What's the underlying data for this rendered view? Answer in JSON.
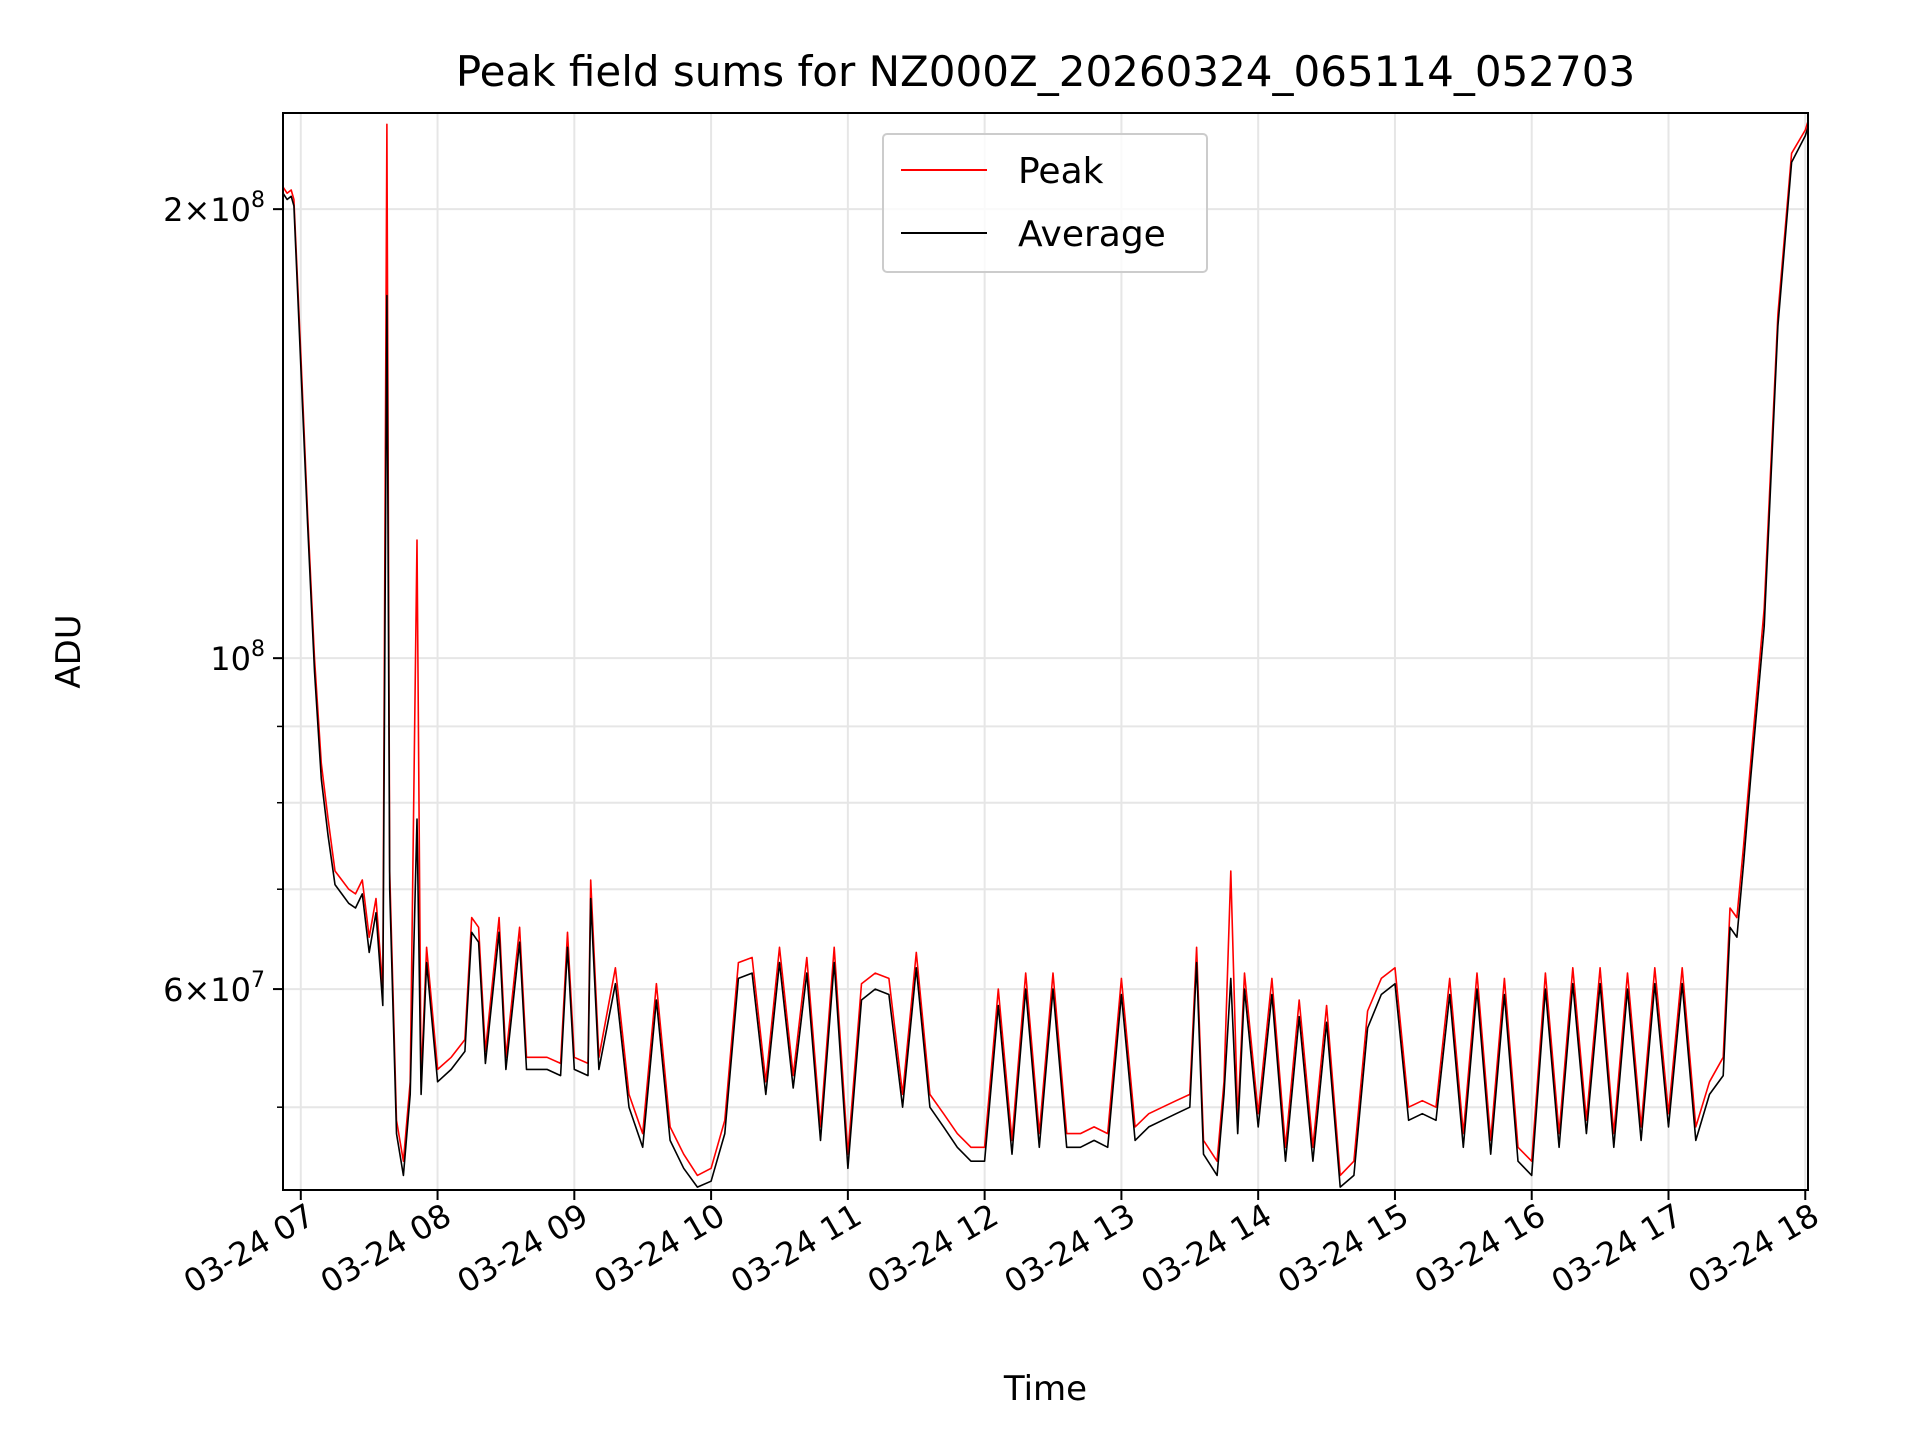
{
  "chart_data": {
    "type": "line",
    "title": "Peak field sums for NZ000Z_20260324_065114_052703",
    "xlabel": "Time",
    "ylabel": "ADU",
    "yscale": "log",
    "ylim": [
      44000000,
      232000000
    ],
    "xlim_hours": [
      6.87,
      18.02
    ],
    "grid": true,
    "legend_position": "top-center",
    "x_ticks": [
      {
        "hour": 7,
        "label": "03-24 07"
      },
      {
        "hour": 8,
        "label": "03-24 08"
      },
      {
        "hour": 9,
        "label": "03-24 09"
      },
      {
        "hour": 10,
        "label": "03-24 10"
      },
      {
        "hour": 11,
        "label": "03-24 11"
      },
      {
        "hour": 12,
        "label": "03-24 12"
      },
      {
        "hour": 13,
        "label": "03-24 13"
      },
      {
        "hour": 14,
        "label": "03-24 14"
      },
      {
        "hour": 15,
        "label": "03-24 15"
      },
      {
        "hour": 16,
        "label": "03-24 16"
      },
      {
        "hour": 17,
        "label": "03-24 17"
      },
      {
        "hour": 18,
        "label": "03-24 18"
      }
    ],
    "y_major_ticks": [
      {
        "value": 200000000,
        "mantissa": "2",
        "exp": "8"
      },
      {
        "value": 100000000,
        "mantissa": "",
        "exp": "8"
      },
      {
        "value": 60000000,
        "mantissa": "6",
        "exp": "7"
      }
    ],
    "y_minor_ticks": [
      50000000,
      70000000,
      80000000,
      90000000
    ],
    "series": [
      {
        "name": "Peak",
        "color": "#ff0000",
        "points": [
          [
            6.87,
            207000000
          ],
          [
            6.9,
            205000000
          ],
          [
            6.93,
            206000000
          ],
          [
            6.95,
            203000000
          ],
          [
            7.0,
            160000000
          ],
          [
            7.05,
            125000000
          ],
          [
            7.1,
            100000000
          ],
          [
            7.15,
            85000000
          ],
          [
            7.2,
            78000000
          ],
          [
            7.25,
            72000000
          ],
          [
            7.3,
            71000000
          ],
          [
            7.35,
            70000000
          ],
          [
            7.4,
            69500000
          ],
          [
            7.45,
            71000000
          ],
          [
            7.5,
            65000000
          ],
          [
            7.55,
            69000000
          ],
          [
            7.6,
            60000000
          ],
          [
            7.63,
            228000000
          ],
          [
            7.65,
            72000000
          ],
          [
            7.7,
            49000000
          ],
          [
            7.75,
            46000000
          ],
          [
            7.8,
            52000000
          ],
          [
            7.85,
            120000000
          ],
          [
            7.88,
            52000000
          ],
          [
            7.92,
            64000000
          ],
          [
            8.0,
            53000000
          ],
          [
            8.1,
            54000000
          ],
          [
            8.2,
            55500000
          ],
          [
            8.25,
            67000000
          ],
          [
            8.3,
            66000000
          ],
          [
            8.35,
            54500000
          ],
          [
            8.45,
            67000000
          ],
          [
            8.5,
            54000000
          ],
          [
            8.6,
            66000000
          ],
          [
            8.65,
            54000000
          ],
          [
            8.8,
            54000000
          ],
          [
            8.9,
            53500000
          ],
          [
            8.95,
            65500000
          ],
          [
            9.0,
            54000000
          ],
          [
            9.1,
            53500000
          ],
          [
            9.12,
            71000000
          ],
          [
            9.18,
            54000000
          ],
          [
            9.3,
            62000000
          ],
          [
            9.4,
            51000000
          ],
          [
            9.5,
            48000000
          ],
          [
            9.6,
            60500000
          ],
          [
            9.7,
            48500000
          ],
          [
            9.8,
            46500000
          ],
          [
            9.9,
            45000000
          ],
          [
            10.0,
            45500000
          ],
          [
            10.1,
            49000000
          ],
          [
            10.2,
            62500000
          ],
          [
            10.3,
            63000000
          ],
          [
            10.4,
            52000000
          ],
          [
            10.5,
            64000000
          ],
          [
            10.6,
            52500000
          ],
          [
            10.7,
            63000000
          ],
          [
            10.8,
            48500000
          ],
          [
            10.9,
            64000000
          ],
          [
            11.0,
            46500000
          ],
          [
            11.1,
            60500000
          ],
          [
            11.2,
            61500000
          ],
          [
            11.3,
            61000000
          ],
          [
            11.4,
            51000000
          ],
          [
            11.5,
            63500000
          ],
          [
            11.6,
            51000000
          ],
          [
            11.7,
            49500000
          ],
          [
            11.8,
            48000000
          ],
          [
            11.9,
            47000000
          ],
          [
            12.0,
            47000000
          ],
          [
            12.1,
            60000000
          ],
          [
            12.2,
            47500000
          ],
          [
            12.3,
            61500000
          ],
          [
            12.4,
            48000000
          ],
          [
            12.5,
            61500000
          ],
          [
            12.6,
            48000000
          ],
          [
            12.7,
            48000000
          ],
          [
            12.8,
            48500000
          ],
          [
            12.9,
            48000000
          ],
          [
            13.0,
            61000000
          ],
          [
            13.1,
            48500000
          ],
          [
            13.2,
            49500000
          ],
          [
            13.3,
            50000000
          ],
          [
            13.4,
            50500000
          ],
          [
            13.5,
            51000000
          ],
          [
            13.55,
            64000000
          ],
          [
            13.6,
            47500000
          ],
          [
            13.7,
            46000000
          ],
          [
            13.75,
            52000000
          ],
          [
            13.8,
            72000000
          ],
          [
            13.85,
            49000000
          ],
          [
            13.9,
            61500000
          ],
          [
            14.0,
            49500000
          ],
          [
            14.1,
            61000000
          ],
          [
            14.2,
            47000000
          ],
          [
            14.3,
            59000000
          ],
          [
            14.4,
            47000000
          ],
          [
            14.5,
            58500000
          ],
          [
            14.6,
            45000000
          ],
          [
            14.7,
            46000000
          ],
          [
            14.8,
            58000000
          ],
          [
            14.9,
            61000000
          ],
          [
            15.0,
            62000000
          ],
          [
            15.1,
            50000000
          ],
          [
            15.2,
            50500000
          ],
          [
            15.3,
            50000000
          ],
          [
            15.4,
            61000000
          ],
          [
            15.5,
            48000000
          ],
          [
            15.6,
            61500000
          ],
          [
            15.7,
            47500000
          ],
          [
            15.8,
            61000000
          ],
          [
            15.9,
            47000000
          ],
          [
            16.0,
            46000000
          ],
          [
            16.1,
            61500000
          ],
          [
            16.2,
            48000000
          ],
          [
            16.3,
            62000000
          ],
          [
            16.4,
            49000000
          ],
          [
            16.5,
            62000000
          ],
          [
            16.6,
            48000000
          ],
          [
            16.7,
            61500000
          ],
          [
            16.8,
            48500000
          ],
          [
            16.9,
            62000000
          ],
          [
            17.0,
            49500000
          ],
          [
            17.1,
            62000000
          ],
          [
            17.2,
            48500000
          ],
          [
            17.3,
            52000000
          ],
          [
            17.4,
            54000000
          ],
          [
            17.45,
            68000000
          ],
          [
            17.5,
            67000000
          ],
          [
            17.55,
            75000000
          ],
          [
            17.6,
            85000000
          ],
          [
            17.7,
            108000000
          ],
          [
            17.8,
            170000000
          ],
          [
            17.9,
            218000000
          ],
          [
            18.0,
            226000000
          ],
          [
            18.02,
            229000000
          ]
        ]
      },
      {
        "name": "Average",
        "color": "#000000",
        "points": [
          [
            6.87,
            205000000
          ],
          [
            6.9,
            203000000
          ],
          [
            6.93,
            204000000
          ],
          [
            6.95,
            201000000
          ],
          [
            7.0,
            157000000
          ],
          [
            7.05,
            123000000
          ],
          [
            7.1,
            98000000
          ],
          [
            7.15,
            83000000
          ],
          [
            7.2,
            76000000
          ],
          [
            7.25,
            70500000
          ],
          [
            7.3,
            69500000
          ],
          [
            7.35,
            68500000
          ],
          [
            7.4,
            68000000
          ],
          [
            7.45,
            69500000
          ],
          [
            7.5,
            63500000
          ],
          [
            7.55,
            67500000
          ],
          [
            7.6,
            58500000
          ],
          [
            7.63,
            175000000
          ],
          [
            7.65,
            70000000
          ],
          [
            7.7,
            48000000
          ],
          [
            7.75,
            45000000
          ],
          [
            7.8,
            51000000
          ],
          [
            7.85,
            78000000
          ],
          [
            7.88,
            51000000
          ],
          [
            7.92,
            62500000
          ],
          [
            8.0,
            52000000
          ],
          [
            8.1,
            53000000
          ],
          [
            8.2,
            54500000
          ],
          [
            8.25,
            65500000
          ],
          [
            8.3,
            64500000
          ],
          [
            8.35,
            53500000
          ],
          [
            8.45,
            65500000
          ],
          [
            8.5,
            53000000
          ],
          [
            8.6,
            64500000
          ],
          [
            8.65,
            53000000
          ],
          [
            8.8,
            53000000
          ],
          [
            8.9,
            52500000
          ],
          [
            8.95,
            64000000
          ],
          [
            9.0,
            53000000
          ],
          [
            9.1,
            52500000
          ],
          [
            9.12,
            69000000
          ],
          [
            9.18,
            53000000
          ],
          [
            9.3,
            60500000
          ],
          [
            9.4,
            50000000
          ],
          [
            9.5,
            47000000
          ],
          [
            9.6,
            59000000
          ],
          [
            9.7,
            47500000
          ],
          [
            9.8,
            45500000
          ],
          [
            9.9,
            44200000
          ],
          [
            10.0,
            44600000
          ],
          [
            10.1,
            48000000
          ],
          [
            10.2,
            61000000
          ],
          [
            10.3,
            61500000
          ],
          [
            10.4,
            51000000
          ],
          [
            10.5,
            62500000
          ],
          [
            10.6,
            51500000
          ],
          [
            10.7,
            61500000
          ],
          [
            10.8,
            47500000
          ],
          [
            10.9,
            62500000
          ],
          [
            11.0,
            45500000
          ],
          [
            11.1,
            59000000
          ],
          [
            11.2,
            60000000
          ],
          [
            11.3,
            59500000
          ],
          [
            11.4,
            50000000
          ],
          [
            11.5,
            62000000
          ],
          [
            11.6,
            50000000
          ],
          [
            11.7,
            48500000
          ],
          [
            11.8,
            47000000
          ],
          [
            11.9,
            46000000
          ],
          [
            12.0,
            46000000
          ],
          [
            12.1,
            58500000
          ],
          [
            12.2,
            46500000
          ],
          [
            12.3,
            60000000
          ],
          [
            12.4,
            47000000
          ],
          [
            12.5,
            60000000
          ],
          [
            12.6,
            47000000
          ],
          [
            12.7,
            47000000
          ],
          [
            12.8,
            47500000
          ],
          [
            12.9,
            47000000
          ],
          [
            13.0,
            59500000
          ],
          [
            13.1,
            47500000
          ],
          [
            13.2,
            48500000
          ],
          [
            13.3,
            49000000
          ],
          [
            13.4,
            49500000
          ],
          [
            13.5,
            50000000
          ],
          [
            13.55,
            62500000
          ],
          [
            13.6,
            46500000
          ],
          [
            13.7,
            45000000
          ],
          [
            13.75,
            51000000
          ],
          [
            13.8,
            61000000
          ],
          [
            13.85,
            48000000
          ],
          [
            13.9,
            60000000
          ],
          [
            14.0,
            48500000
          ],
          [
            14.1,
            59500000
          ],
          [
            14.2,
            46000000
          ],
          [
            14.3,
            57500000
          ],
          [
            14.4,
            46000000
          ],
          [
            14.5,
            57000000
          ],
          [
            14.6,
            44200000
          ],
          [
            14.7,
            45000000
          ],
          [
            14.8,
            56500000
          ],
          [
            14.9,
            59500000
          ],
          [
            15.0,
            60500000
          ],
          [
            15.1,
            49000000
          ],
          [
            15.2,
            49500000
          ],
          [
            15.3,
            49000000
          ],
          [
            15.4,
            59500000
          ],
          [
            15.5,
            47000000
          ],
          [
            15.6,
            60000000
          ],
          [
            15.7,
            46500000
          ],
          [
            15.8,
            59500000
          ],
          [
            15.9,
            46000000
          ],
          [
            16.0,
            45000000
          ],
          [
            16.1,
            60000000
          ],
          [
            16.2,
            47000000
          ],
          [
            16.3,
            60500000
          ],
          [
            16.4,
            48000000
          ],
          [
            16.5,
            60500000
          ],
          [
            16.6,
            47000000
          ],
          [
            16.7,
            60000000
          ],
          [
            16.8,
            47500000
          ],
          [
            16.9,
            60500000
          ],
          [
            17.0,
            48500000
          ],
          [
            17.1,
            60500000
          ],
          [
            17.2,
            47500000
          ],
          [
            17.3,
            51000000
          ],
          [
            17.4,
            52500000
          ],
          [
            17.45,
            66000000
          ],
          [
            17.5,
            65000000
          ],
          [
            17.55,
            73000000
          ],
          [
            17.6,
            83000000
          ],
          [
            17.7,
            105000000
          ],
          [
            17.8,
            167000000
          ],
          [
            17.9,
            215000000
          ],
          [
            18.0,
            224000000
          ],
          [
            18.02,
            227000000
          ]
        ]
      }
    ]
  }
}
